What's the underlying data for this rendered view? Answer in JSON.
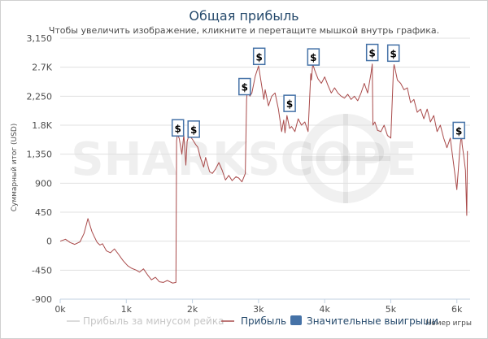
{
  "watermark": "SHARKSCOPE",
  "chart_data": {
    "type": "line",
    "title": "Общая прибыль",
    "subtitle": "Чтобы увеличить изображение, кликните и перетащите мышкой внутрь графика.",
    "ylabel": "Суммарный итог (USD)",
    "xlabel": "Номер игры",
    "xlim": [
      0,
      6200
    ],
    "ylim": [
      -900,
      3150
    ],
    "y_ticks": [
      "3,150",
      "2.7K",
      "2,250",
      "1.8K",
      "1,350",
      "900",
      "450",
      "0",
      "-450",
      "-900"
    ],
    "y_tick_values": [
      3150,
      2700,
      2250,
      1800,
      1350,
      900,
      450,
      0,
      -450,
      -900
    ],
    "x_ticks": [
      "0k",
      "1k",
      "2k",
      "3k",
      "4k",
      "5k",
      "6k"
    ],
    "x_tick_values": [
      0,
      1000,
      2000,
      3000,
      4000,
      5000,
      6000
    ],
    "grid": true,
    "legend_placement": "bottom",
    "series": [
      {
        "name": "Прибыль",
        "color": "#a94a4a",
        "x": [
          0,
          80,
          150,
          220,
          300,
          360,
          420,
          480,
          520,
          560,
          600,
          640,
          700,
          760,
          820,
          880,
          950,
          1020,
          1080,
          1150,
          1200,
          1260,
          1320,
          1380,
          1440,
          1500,
          1560,
          1620,
          1700,
          1750,
          1760,
          1770,
          1800,
          1840,
          1870,
          1900,
          1920,
          1950,
          2000,
          2050,
          2080,
          2120,
          2170,
          2200,
          2260,
          2300,
          2350,
          2400,
          2450,
          2500,
          2550,
          2600,
          2660,
          2700,
          2750,
          2800,
          2820,
          2830,
          2870,
          2900,
          2950,
          3000,
          3050,
          3080,
          3100,
          3150,
          3200,
          3250,
          3300,
          3350,
          3380,
          3400,
          3430,
          3470,
          3500,
          3550,
          3600,
          3650,
          3700,
          3750,
          3790,
          3800,
          3820,
          3850,
          3900,
          3950,
          4000,
          4050,
          4100,
          4150,
          4200,
          4250,
          4300,
          4350,
          4400,
          4450,
          4500,
          4550,
          4600,
          4650,
          4700,
          4720,
          4730,
          4760,
          4800,
          4850,
          4900,
          4950,
          5000,
          5040,
          5050,
          5060,
          5100,
          5150,
          5200,
          5250,
          5300,
          5350,
          5400,
          5450,
          5500,
          5550,
          5600,
          5650,
          5700,
          5750,
          5800,
          5850,
          5900,
          5950,
          6000,
          6050,
          6070,
          6080,
          6100,
          6130,
          6150,
          6160
        ],
        "y": [
          0,
          30,
          -20,
          -50,
          -10,
          120,
          350,
          150,
          60,
          -20,
          -60,
          -40,
          -150,
          -180,
          -120,
          -200,
          -300,
          -380,
          -420,
          -450,
          -480,
          -430,
          -520,
          -600,
          -560,
          -630,
          -640,
          -610,
          -650,
          -640,
          1550,
          1650,
          1600,
          1350,
          1650,
          1180,
          1550,
          1650,
          1580,
          1500,
          1460,
          1300,
          1150,
          1300,
          1080,
          1050,
          1120,
          1220,
          1100,
          950,
          1020,
          940,
          1000,
          980,
          920,
          1050,
          2200,
          2350,
          2250,
          2300,
          2560,
          2720,
          2400,
          2200,
          2350,
          2100,
          2250,
          2300,
          2050,
          1700,
          1880,
          1680,
          1950,
          1750,
          1780,
          1700,
          1900,
          1800,
          1850,
          1700,
          2600,
          2500,
          2750,
          2650,
          2520,
          2450,
          2550,
          2420,
          2300,
          2380,
          2300,
          2250,
          2220,
          2280,
          2200,
          2250,
          2180,
          2300,
          2450,
          2300,
          2600,
          2750,
          1800,
          1850,
          1720,
          1700,
          1800,
          1640,
          1600,
          2650,
          2740,
          2700,
          2500,
          2450,
          2350,
          2380,
          2150,
          2200,
          2000,
          2050,
          1900,
          2050,
          1850,
          1950,
          1700,
          1800,
          1600,
          1450,
          1600,
          1200,
          800,
          1500,
          1650,
          1500,
          1350,
          1100,
          400,
          1400
        ],
        "markers": [
          {
            "x": 1780,
            "y": 1620
          },
          {
            "x": 2020,
            "y": 1600
          },
          {
            "x": 2790,
            "y": 2260
          },
          {
            "x": 3010,
            "y": 2730
          },
          {
            "x": 3470,
            "y": 2000
          },
          {
            "x": 3830,
            "y": 2720
          },
          {
            "x": 4720,
            "y": 2790
          },
          {
            "x": 5040,
            "y": 2780
          },
          {
            "x": 6030,
            "y": 1580
          }
        ]
      }
    ],
    "legend": [
      {
        "label": "Прибыль за минусом рейка",
        "color": "#cfcfcf",
        "text_color": "#c6c6c6",
        "kind": "line"
      },
      {
        "label": "Прибыль",
        "color": "#a94a4a",
        "text_color": "#274b6d",
        "kind": "line"
      },
      {
        "label": "Значительные выигрыши",
        "color": "#4572a7",
        "text_color": "#274b6d",
        "kind": "box"
      }
    ],
    "marker_label": "$"
  }
}
